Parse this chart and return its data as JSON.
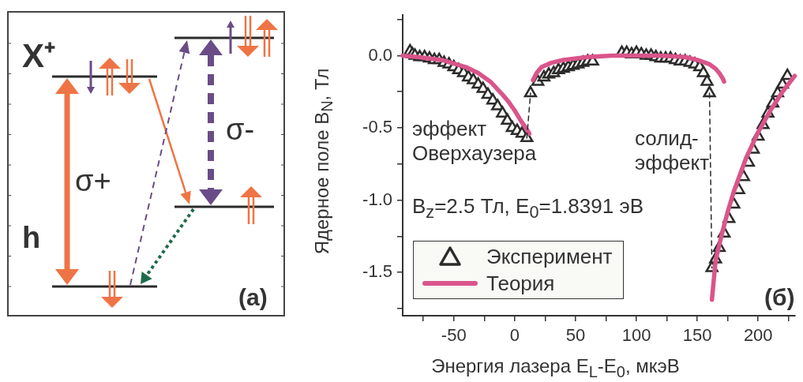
{
  "chart_data": [
    {
      "type": "other",
      "annotations": [
        "X⁺",
        "h",
        "σ+",
        "σ-",
        "(a)"
      ]
    },
    {
      "type": "scatter",
      "xlabel": "Энергия лазера E$_{L}$-E$_{0}$, мкэВ",
      "ylabel": "Ядерное поле B$_{N}$, Тл",
      "annotations": [
        "эффект Оверхаузера",
        "солид-эффект",
        "B$_{z}$=2.5 Тл, E$_{0}$=1.8391 эВ",
        "(б)"
      ],
      "xlim": [
        -92,
        230
      ],
      "ylim": [
        -1.8,
        0.28
      ],
      "xticks": [
        {
          "value": -75,
          "label": null
        },
        -50,
        {
          "value": -25,
          "label": null
        },
        0,
        {
          "value": 25,
          "label": null
        },
        50,
        {
          "value": 75,
          "label": null
        },
        100,
        {
          "value": 125,
          "label": null
        },
        150,
        {
          "value": 175,
          "label": null
        },
        200,
        {
          "value": 225,
          "label": null
        }
      ],
      "yticks": [
        {
          "value": 0.25,
          "label": null
        },
        {
          "value": 0,
          "label": "0.0"
        },
        {
          "value": -0.25,
          "label": null
        },
        -0.5,
        {
          "value": -0.75,
          "label": null
        },
        {
          "value": -1,
          "label": "-1.0"
        },
        {
          "value": -1.25,
          "label": null
        },
        -1.5,
        {
          "value": -1.75,
          "label": null
        }
      ],
      "grid": false,
      "legend": "bottom left",
      "series": [
        {
          "name": "Эксперимент",
          "type": "scatter",
          "marker": "triangle",
          "color": "#2b2b2b",
          "x": [
            -86,
            -84,
            -82,
            -78,
            -74,
            -70,
            -66,
            -62,
            -58,
            -54,
            -50,
            -46,
            -42,
            -38,
            -34,
            -30,
            -26,
            -22,
            -18,
            -14,
            -10,
            -6,
            -2,
            2,
            6,
            10,
            13,
            19,
            24,
            28,
            32,
            36,
            40,
            44,
            48,
            52,
            56,
            60,
            64,
            88,
            92,
            96,
            100,
            104,
            108,
            112,
            116,
            120,
            124,
            128,
            132,
            136,
            140,
            144,
            148,
            152,
            155,
            158,
            160,
            162,
            165,
            168,
            172,
            176,
            180,
            184,
            188,
            192,
            196,
            200,
            204,
            208,
            212,
            216,
            220,
            224
          ],
          "values": [
            0.03,
            0.01,
            0.0,
            -0.01,
            -0.01,
            -0.02,
            -0.03,
            -0.03,
            -0.05,
            -0.06,
            -0.08,
            -0.1,
            -0.12,
            -0.15,
            -0.17,
            -0.2,
            -0.23,
            -0.27,
            -0.31,
            -0.35,
            -0.4,
            -0.45,
            -0.5,
            -0.52,
            -0.54,
            -0.57,
            -0.26,
            -0.18,
            -0.15,
            -0.13,
            -0.12,
            -0.1,
            -0.09,
            -0.08,
            -0.07,
            -0.06,
            -0.05,
            -0.04,
            -0.04,
            0.02,
            0.02,
            0.01,
            0.02,
            0.01,
            0.0,
            0.0,
            -0.01,
            -0.02,
            -0.02,
            -0.02,
            -0.03,
            -0.04,
            -0.04,
            -0.05,
            -0.06,
            -0.08,
            -0.12,
            -0.18,
            -0.26,
            -1.47,
            -1.41,
            -1.33,
            -1.23,
            -1.13,
            -1.03,
            -0.93,
            -0.84,
            -0.74,
            -0.65,
            -0.56,
            -0.48,
            -0.4,
            -0.33,
            -0.26,
            -0.2,
            -0.14
          ]
        },
        {
          "name": "Теория",
          "type": "line",
          "marker": "none",
          "line_style": "solid",
          "color": "#d9558a",
          "x": [
            -92,
            -80,
            -60,
            -40,
            -30,
            -20,
            -10,
            -5,
            0,
            5,
            10,
            12,
            null,
            15,
            18,
            22,
            30,
            40,
            60,
            80,
            100,
            120,
            140,
            150,
            160,
            165,
            168,
            171,
            172,
            null,
            162,
            165,
            170,
            175,
            180,
            190,
            200,
            210,
            220,
            230
          ],
          "values": [
            0,
            -0.01,
            -0.03,
            -0.08,
            -0.12,
            -0.18,
            -0.27,
            -0.32,
            -0.38,
            -0.45,
            -0.51,
            -0.54,
            null,
            -0.17,
            -0.12,
            -0.08,
            -0.05,
            -0.03,
            -0.01,
            0,
            0,
            0,
            -0.01,
            -0.03,
            -0.06,
            -0.09,
            -0.12,
            -0.16,
            -0.18,
            null,
            -1.69,
            -1.42,
            -1.24,
            -1.08,
            -0.94,
            -0.71,
            -0.53,
            -0.38,
            -0.25,
            -0.14
          ]
        },
        {
          "type": "line",
          "marker": "none",
          "line_style": "dashed",
          "color": "#2b2b2b",
          "x": [
            10,
            13,
            null,
            160,
            162
          ],
          "values": [
            -0.57,
            -0.26,
            null,
            -0.26,
            -1.47
          ]
        }
      ]
    }
  ]
}
